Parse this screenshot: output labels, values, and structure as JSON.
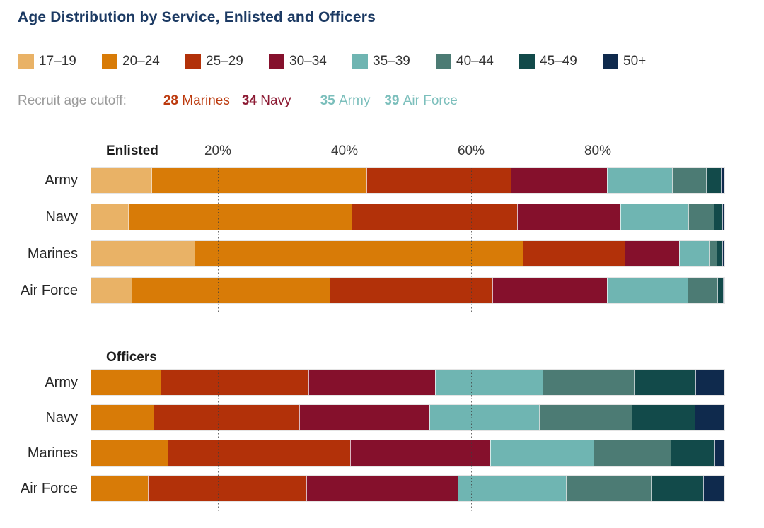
{
  "title": "Age Distribution by Service, Enlisted and Officers",
  "legend": {
    "items": [
      {
        "label": "17–19",
        "color": "#E9B266"
      },
      {
        "label": "20–24",
        "color": "#D87B07"
      },
      {
        "label": "25–29",
        "color": "#B23109"
      },
      {
        "label": "30–34",
        "color": "#85102C"
      },
      {
        "label": "35–39",
        "color": "#6FB5B2"
      },
      {
        "label": "40–44",
        "color": "#4C7B74"
      },
      {
        "label": "45–49",
        "color": "#124A4A"
      },
      {
        "label": "50+",
        "color": "#0F2A4D"
      }
    ]
  },
  "cutoff": {
    "label": "Recruit age cutoff:",
    "items": [
      {
        "value": "28",
        "service": "Marines",
        "color": "#BC3A0E"
      },
      {
        "value": "34",
        "service": "Navy",
        "color": "#8C1A33"
      },
      {
        "value": "35",
        "service": "Army",
        "color": "#7CBFBC"
      },
      {
        "value": "39",
        "service": "Air Force",
        "color": "#7CBFBC"
      }
    ]
  },
  "chart_data": {
    "type": "bar",
    "stacked": true,
    "orientation": "horizontal",
    "units": "%",
    "xlim": [
      0,
      100
    ],
    "grid": true,
    "legend_position": "top",
    "categories": [
      "17–19",
      "20–24",
      "25–29",
      "30–34",
      "35–39",
      "40–44",
      "45–49",
      "50+"
    ],
    "colors": [
      "#E9B266",
      "#D87B07",
      "#B23109",
      "#85102C",
      "#6FB5B2",
      "#4C7B74",
      "#124A4A",
      "#0F2A4D"
    ],
    "x_ticks": [
      {
        "label": "20%",
        "value": 20
      },
      {
        "label": "40%",
        "value": 40
      },
      {
        "label": "60%",
        "value": 60
      },
      {
        "label": "80%",
        "value": 80
      }
    ],
    "sections": [
      {
        "name": "Enlisted",
        "show_ticks": true,
        "rows": [
          {
            "label": "Army",
            "values": [
              9.5,
              34.0,
              22.7,
              15.2,
              10.3,
              5.4,
              2.3,
              0.6
            ]
          },
          {
            "label": "Navy",
            "values": [
              5.8,
              35.3,
              26.2,
              16.3,
              10.7,
              4.0,
              1.4,
              0.3
            ]
          },
          {
            "label": "Marines",
            "values": [
              16.3,
              51.8,
              16.1,
              8.6,
              4.7,
              1.3,
              0.9,
              0.3
            ]
          },
          {
            "label": "Air Force",
            "values": [
              6.4,
              31.2,
              25.8,
              18.1,
              12.7,
              4.7,
              0.9,
              0.2
            ]
          }
        ]
      },
      {
        "name": "Officers",
        "show_ticks": false,
        "rows": [
          {
            "label": "Army",
            "values": [
              0,
              11.0,
              23.3,
              20.0,
              17.0,
              14.4,
              9.7,
              4.6
            ]
          },
          {
            "label": "Navy",
            "values": [
              0,
              9.8,
              23.0,
              20.6,
              17.3,
              14.7,
              9.9,
              4.7
            ]
          },
          {
            "label": "Marines",
            "values": [
              0,
              12.1,
              28.8,
              22.1,
              16.3,
              12.2,
              6.9,
              1.6
            ]
          },
          {
            "label": "Air Force",
            "values": [
              0,
              8.9,
              25.1,
              23.9,
              17.1,
              13.4,
              8.2,
              3.4
            ]
          }
        ]
      }
    ]
  }
}
